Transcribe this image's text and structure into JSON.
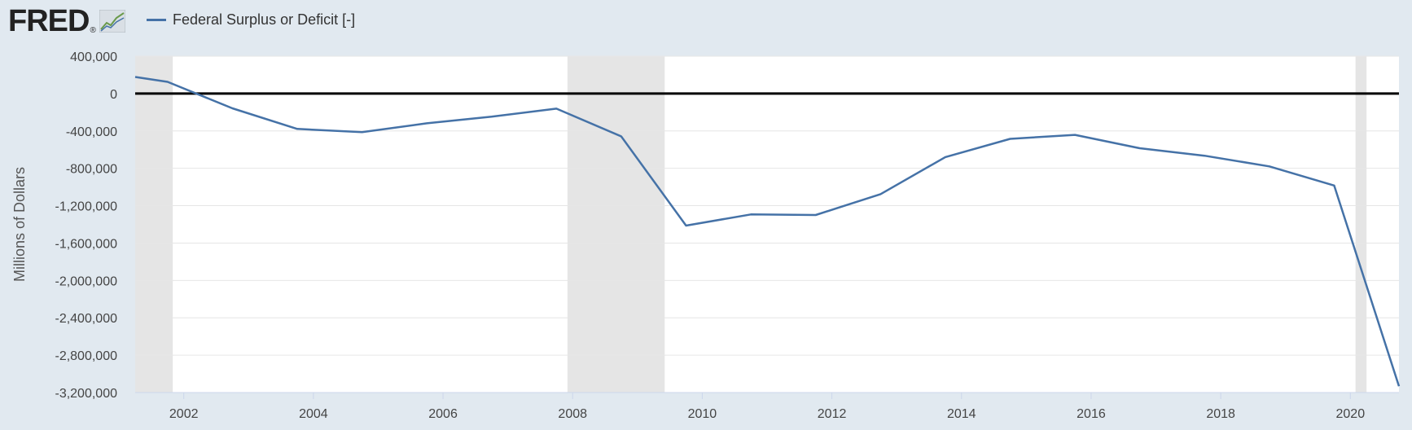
{
  "header": {
    "logo_text": "FRED",
    "logo_icon": "line-chart-icon",
    "legend_label": "Federal Surplus or Deficit [-]"
  },
  "colors": {
    "background": "#e1e9f0",
    "plot_background": "#ffffff",
    "series": "#4572a7",
    "recession": "#e5e5e5",
    "gridline": "#e6e6e6",
    "zero_line": "#000000"
  },
  "chart_data": {
    "type": "line",
    "title": "",
    "xlabel": "",
    "ylabel": "Millions of Dollars",
    "xlim": [
      2001.25,
      2020.75
    ],
    "ylim": [
      -3200000,
      400000
    ],
    "x_ticks": [
      2002,
      2004,
      2006,
      2008,
      2010,
      2012,
      2014,
      2016,
      2018,
      2020
    ],
    "y_ticks": [
      400000,
      0,
      -400000,
      -800000,
      -1200000,
      -1600000,
      -2000000,
      -2400000,
      -2800000,
      -3200000
    ],
    "y_tick_labels": [
      "400,000",
      "0",
      "-400,000",
      "-800,000",
      "-1,200,000",
      "-1,600,000",
      "-2,000,000",
      "-2,400,000",
      "-2,800,000",
      "-3,200,000"
    ],
    "grid": true,
    "recessions": [
      {
        "start": 2001.25,
        "end": 2001.83
      },
      {
        "start": 2007.92,
        "end": 2009.42
      },
      {
        "start": 2020.08,
        "end": 2020.25
      }
    ],
    "series": [
      {
        "name": "Federal Surplus or Deficit [-]",
        "x": [
          2001.25,
          2001.75,
          2002.75,
          2003.75,
          2004.75,
          2005.75,
          2006.75,
          2007.75,
          2008.75,
          2009.75,
          2010.75,
          2011.75,
          2012.75,
          2013.75,
          2014.75,
          2015.75,
          2016.75,
          2017.75,
          2018.75,
          2019.75,
          2020.75
        ],
        "values": [
          178000,
          125000,
          -158000,
          -378000,
          -413000,
          -318000,
          -248000,
          -161000,
          -459000,
          -1413000,
          -1294000,
          -1300000,
          -1077000,
          -680000,
          -485000,
          -442000,
          -585000,
          -665000,
          -779000,
          -984000,
          -3132000
        ]
      }
    ]
  }
}
